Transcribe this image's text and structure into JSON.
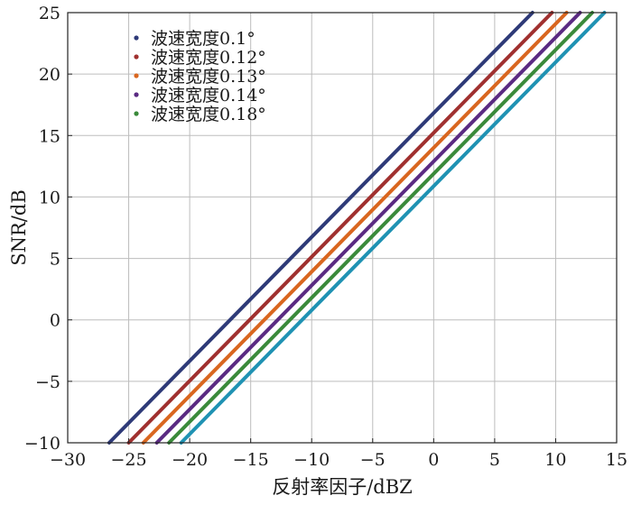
{
  "chart_data": {
    "type": "line",
    "xlabel": "反射率因子/dBZ",
    "ylabel": "SNR/dB",
    "xlim": [
      -30,
      15
    ],
    "ylim": [
      -10,
      25
    ],
    "xticks": [
      -30,
      -25,
      -20,
      -15,
      -10,
      -5,
      0,
      5,
      10,
      15
    ],
    "yticks": [
      -10,
      -5,
      0,
      5,
      10,
      15,
      20,
      25
    ],
    "xtick_labels": [
      "−30",
      "−25",
      "−20",
      "−15",
      "−10",
      "−5",
      "0",
      "5",
      "10",
      "15"
    ],
    "ytick_labels": [
      "−10",
      "−5",
      "0",
      "5",
      "10",
      "15",
      "20",
      "25"
    ],
    "grid": true,
    "legend_position": "top-left",
    "series": [
      {
        "name": "波速宽度0.1°",
        "color": "#2e3a78",
        "x": [
          -26.6,
          8.1
        ],
        "y": [
          -10,
          25
        ]
      },
      {
        "name": "波速宽度0.12°",
        "color": "#a0302f",
        "x": [
          -25.0,
          9.7
        ],
        "y": [
          -10,
          25
        ]
      },
      {
        "name": "波速宽度0.13°",
        "color": "#d9661f",
        "x": [
          -23.8,
          10.9
        ],
        "y": [
          -10,
          25
        ]
      },
      {
        "name": "波速宽度0.14°",
        "color": "#5a2a82",
        "x": [
          -22.7,
          12.0
        ],
        "y": [
          -10,
          25
        ]
      },
      {
        "name": "波速宽度0.18°",
        "color": "#3a8a3a",
        "x": [
          -21.7,
          13.0
        ],
        "y": [
          -10,
          25
        ]
      },
      {
        "color": "#1f92b3",
        "x": [
          -20.7,
          14.0
        ],
        "y": [
          -10,
          25
        ]
      }
    ]
  }
}
